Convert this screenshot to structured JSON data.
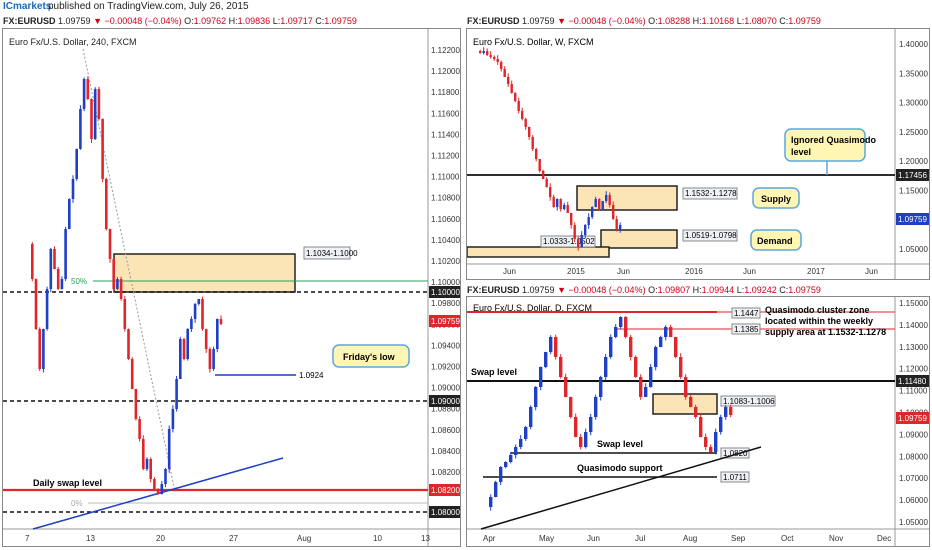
{
  "header": {
    "brand": "ICmarkets",
    "published": "published on TradingView.com, July 26, 2015"
  },
  "panels": [
    {
      "id": "h4",
      "ohlc": {
        "symbol": "FX:EURUSD",
        "price": "1.09759",
        "change": "▼ −0.00048 (−0.04%)",
        "o": "1.09762",
        "h": "1.09836",
        "l": "1.09717",
        "c": "1.09759"
      },
      "title": "Euro Fx/U.S. Dollar, 240, FXCM",
      "price_labels": [
        "1.12200",
        "1.12000",
        "1.11800",
        "1.11600",
        "1.11400",
        "1.11200",
        "1.11000",
        "1.10800",
        "1.10600",
        "1.10400",
        "1.10200",
        "1.10000",
        "1.09800",
        "1.09600",
        "1.09400",
        "1.09200",
        "1.09000",
        "1.08800",
        "1.08600",
        "1.08400",
        "1.08200",
        "1.08000"
      ],
      "current_price": "1.09759",
      "time_labels": [
        "7",
        "13",
        "20",
        "27",
        "Aug",
        "10",
        "13"
      ],
      "annotations": {
        "zone": "1.1034-1.1000",
        "fib50": "50%",
        "fib0": "0%",
        "level_0924": "1.0924",
        "fridays_low": "Friday's low",
        "daily_swap": "Daily swap level"
      },
      "level_labels": {
        "l1000": "1.10000",
        "l0900": "1.09000",
        "l0820": "1.08200",
        "l0800": "1.08000"
      }
    },
    {
      "id": "weekly",
      "ohlc": {
        "symbol": "FX:EURUSD",
        "price": "1.09759",
        "change": "▼ −0.00048 (−0.04%)",
        "o": "1.08288",
        "h": "1.10168",
        "l": "1.08070",
        "c": "1.09759"
      },
      "title": "Euro Fx/U.S. Dollar, W, FXCM",
      "price_labels": [
        "1.40000",
        "1.35000",
        "1.30000",
        "1.25000",
        "1.20000",
        "1.15000",
        "1.10000",
        "1.05000"
      ],
      "time_labels": [
        "Jun",
        "2015",
        "Jun",
        "2016",
        "Jun",
        "2017",
        "Jun"
      ],
      "annotations": {
        "ignored_qm_1": "Ignored Quasimodo",
        "ignored_qm_2": "level",
        "level": "1.17456",
        "supply_zone": "1.1532-1.1278",
        "supply": "Supply",
        "demand_zone": "1.0519-1.0798",
        "demand": "Demand",
        "low_zone": "1.0333-1.0502",
        "current_price": "1.09759"
      }
    },
    {
      "id": "daily",
      "ohlc": {
        "symbol": "FX:EURUSD",
        "price": "1.09759",
        "change": "▼ −0.00048 (−0.04%)",
        "o": "1.09807",
        "h": "1.09944",
        "l": "1.09242",
        "c": "1.09759"
      },
      "title": "Euro Fx/U.S. Dollar, D, FXCM",
      "price_labels": [
        "1.15000",
        "1.14000",
        "1.13000",
        "1.12000",
        "1.11000",
        "1.10000",
        "1.09000",
        "1.08000",
        "1.07000",
        "1.06000",
        "1.05000"
      ],
      "time_labels": [
        "Apr",
        "May",
        "Jun",
        "Jul",
        "Aug",
        "Sep",
        "Oct",
        "Nov",
        "Dec"
      ],
      "annotations": {
        "qm1": "1.1447",
        "qm2": "1.1385",
        "qm_text_1": "Quasimodo cluster zone",
        "qm_text_2": "located within the weekly",
        "qm_text_3": "supply area at 1.1532-1.1278",
        "swap_level": "Swap level",
        "swap_price": "1.11480",
        "zone": "1.1083-1.1006",
        "swap_level_2": "Swap level",
        "level_0820": "1.0820",
        "qm_support": "Quasimodo support",
        "level_0711": "1.0711",
        "current_price": "1.09759"
      }
    }
  ]
}
